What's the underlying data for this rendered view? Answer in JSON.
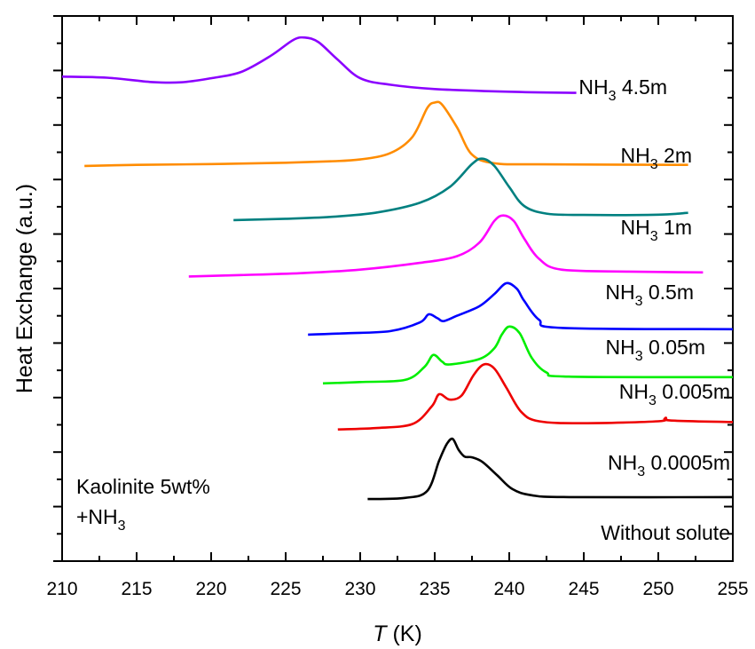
{
  "chart_data": {
    "type": "line",
    "xlabel": {
      "italic": "T",
      "rest": " (K)"
    },
    "ylabel": "Heat Exchange (a.u.)",
    "xlim": [
      210,
      255
    ],
    "xticks": [
      "210",
      "215",
      "220",
      "225",
      "230",
      "235",
      "240",
      "245",
      "250",
      "255"
    ],
    "yticks_labeled": false,
    "annotation": {
      "line1": "Kaolinite 5wt%",
      "line2_main": "+NH",
      "line2_sub": "3"
    },
    "series": [
      {
        "name": "NH3 4.5m",
        "label_main": "NH",
        "label_sub": "3",
        "label_rest": " 4.5m",
        "color": "#8b00ff",
        "points": [
          [
            210,
            0.68
          ],
          [
            213,
            0.64
          ],
          [
            216,
            0.48
          ],
          [
            218,
            0.47
          ],
          [
            220,
            0.62
          ],
          [
            222,
            0.85
          ],
          [
            224,
            1.45
          ],
          [
            225.5,
            2.03
          ],
          [
            226.3,
            2.12
          ],
          [
            227.2,
            1.95
          ],
          [
            228.5,
            1.3
          ],
          [
            230,
            0.62
          ],
          [
            232,
            0.38
          ],
          [
            235,
            0.22
          ],
          [
            240,
            0.12
          ],
          [
            244.5,
            0.08
          ]
        ]
      },
      {
        "name": "NH3 2m",
        "label_main": "NH",
        "label_sub": "3",
        "label_rest": " 2m",
        "color": "#ff8c00",
        "points": [
          [
            211.5,
            -2.62
          ],
          [
            215,
            -2.58
          ],
          [
            220,
            -2.55
          ],
          [
            225,
            -2.5
          ],
          [
            228,
            -2.45
          ],
          [
            230,
            -2.38
          ],
          [
            232,
            -2.15
          ],
          [
            233.5,
            -1.55
          ],
          [
            234.5,
            -0.48
          ],
          [
            235,
            -0.28
          ],
          [
            235.5,
            -0.36
          ],
          [
            236.5,
            -1.2
          ],
          [
            237.5,
            -2.2
          ],
          [
            239,
            -2.52
          ],
          [
            242,
            -2.56
          ],
          [
            252,
            -2.58
          ]
        ]
      },
      {
        "name": "NH3 1m",
        "label_main": "NH",
        "label_sub": "3",
        "label_rest": " 1m",
        "color": "#008080",
        "points": [
          [
            221.5,
            -4.62
          ],
          [
            225,
            -4.57
          ],
          [
            228,
            -4.5
          ],
          [
            231,
            -4.35
          ],
          [
            234,
            -3.98
          ],
          [
            236,
            -3.4
          ],
          [
            237.5,
            -2.55
          ],
          [
            238.2,
            -2.35
          ],
          [
            239,
            -2.62
          ],
          [
            240,
            -3.4
          ],
          [
            241,
            -4.1
          ],
          [
            242.5,
            -4.38
          ],
          [
            245,
            -4.43
          ],
          [
            250,
            -4.42
          ],
          [
            252,
            -4.35
          ]
        ]
      },
      {
        "name": "NH3 0.5m",
        "label_main": "NH",
        "label_sub": "3",
        "label_rest": " 0.5m",
        "color": "#ff00ff",
        "points": [
          [
            218.5,
            -6.7
          ],
          [
            222,
            -6.65
          ],
          [
            226,
            -6.58
          ],
          [
            230,
            -6.45
          ],
          [
            234,
            -6.2
          ],
          [
            236.5,
            -5.95
          ],
          [
            238,
            -5.45
          ],
          [
            239,
            -4.65
          ],
          [
            239.6,
            -4.45
          ],
          [
            240.3,
            -4.65
          ],
          [
            241,
            -5.3
          ],
          [
            242,
            -6.05
          ],
          [
            243.5,
            -6.45
          ],
          [
            248,
            -6.52
          ],
          [
            253,
            -6.55
          ]
        ]
      },
      {
        "name": "NH3 0.05m",
        "label_main": "NH",
        "label_sub": "3",
        "label_rest": " 0.05m",
        "color": "#0000ff",
        "points": [
          [
            226.5,
            -8.85
          ],
          [
            229,
            -8.8
          ],
          [
            232,
            -8.72
          ],
          [
            234,
            -8.4
          ],
          [
            234.6,
            -8.1
          ],
          [
            235.2,
            -8.25
          ],
          [
            235.6,
            -8.35
          ],
          [
            236.5,
            -8.15
          ],
          [
            238,
            -7.8
          ],
          [
            239,
            -7.35
          ],
          [
            239.8,
            -6.95
          ],
          [
            240.5,
            -7.15
          ],
          [
            241,
            -7.6
          ],
          [
            242,
            -8.3
          ],
          [
            243.5,
            -8.6
          ],
          [
            255,
            -8.65
          ]
        ]
      },
      {
        "name": "NH3 0.005m",
        "label_main": "NH",
        "label_sub": "3",
        "label_rest": " 0.005m",
        "color": "#00ee00",
        "points": [
          [
            227.5,
            -10.65
          ],
          [
            230,
            -10.6
          ],
          [
            233,
            -10.52
          ],
          [
            234.3,
            -10.05
          ],
          [
            234.9,
            -9.6
          ],
          [
            235.5,
            -9.85
          ],
          [
            236,
            -9.95
          ],
          [
            238,
            -9.75
          ],
          [
            239,
            -9.35
          ],
          [
            239.5,
            -8.85
          ],
          [
            240,
            -8.55
          ],
          [
            240.7,
            -8.8
          ],
          [
            241.5,
            -9.7
          ],
          [
            242.5,
            -10.25
          ],
          [
            244,
            -10.4
          ],
          [
            255,
            -10.42
          ]
        ]
      },
      {
        "name": "NH3 0.0005m",
        "label_main": "NH",
        "label_sub": "3",
        "label_rest": " 0.0005m",
        "color": "#ee0000",
        "points": [
          [
            228.5,
            -12.35
          ],
          [
            231,
            -12.3
          ],
          [
            233.5,
            -12.15
          ],
          [
            234.8,
            -11.5
          ],
          [
            235.3,
            -11.05
          ],
          [
            236,
            -11.25
          ],
          [
            236.8,
            -11.1
          ],
          [
            237.6,
            -10.35
          ],
          [
            238.3,
            -9.95
          ],
          [
            239,
            -10.1
          ],
          [
            239.8,
            -10.8
          ],
          [
            240.8,
            -11.7
          ],
          [
            242,
            -12.05
          ],
          [
            245,
            -12.12
          ],
          [
            250,
            -12.05
          ],
          [
            250.5,
            -11.92
          ],
          [
            250.8,
            -12.02
          ],
          [
            255,
            -12.08
          ]
        ]
      },
      {
        "name": "Without solute",
        "label_main": "Without solute",
        "label_sub": "",
        "label_rest": "",
        "color": "#000000",
        "points": [
          [
            230.5,
            -14.92
          ],
          [
            233,
            -14.88
          ],
          [
            234.5,
            -14.62
          ],
          [
            235.3,
            -13.5
          ],
          [
            235.8,
            -12.9
          ],
          [
            236.2,
            -12.7
          ],
          [
            236.6,
            -13.1
          ],
          [
            237,
            -13.35
          ],
          [
            237.5,
            -13.38
          ],
          [
            238.2,
            -13.55
          ],
          [
            239.2,
            -14.05
          ],
          [
            240.2,
            -14.55
          ],
          [
            241.5,
            -14.78
          ],
          [
            244,
            -14.85
          ],
          [
            255,
            -14.85
          ]
        ]
      }
    ]
  }
}
